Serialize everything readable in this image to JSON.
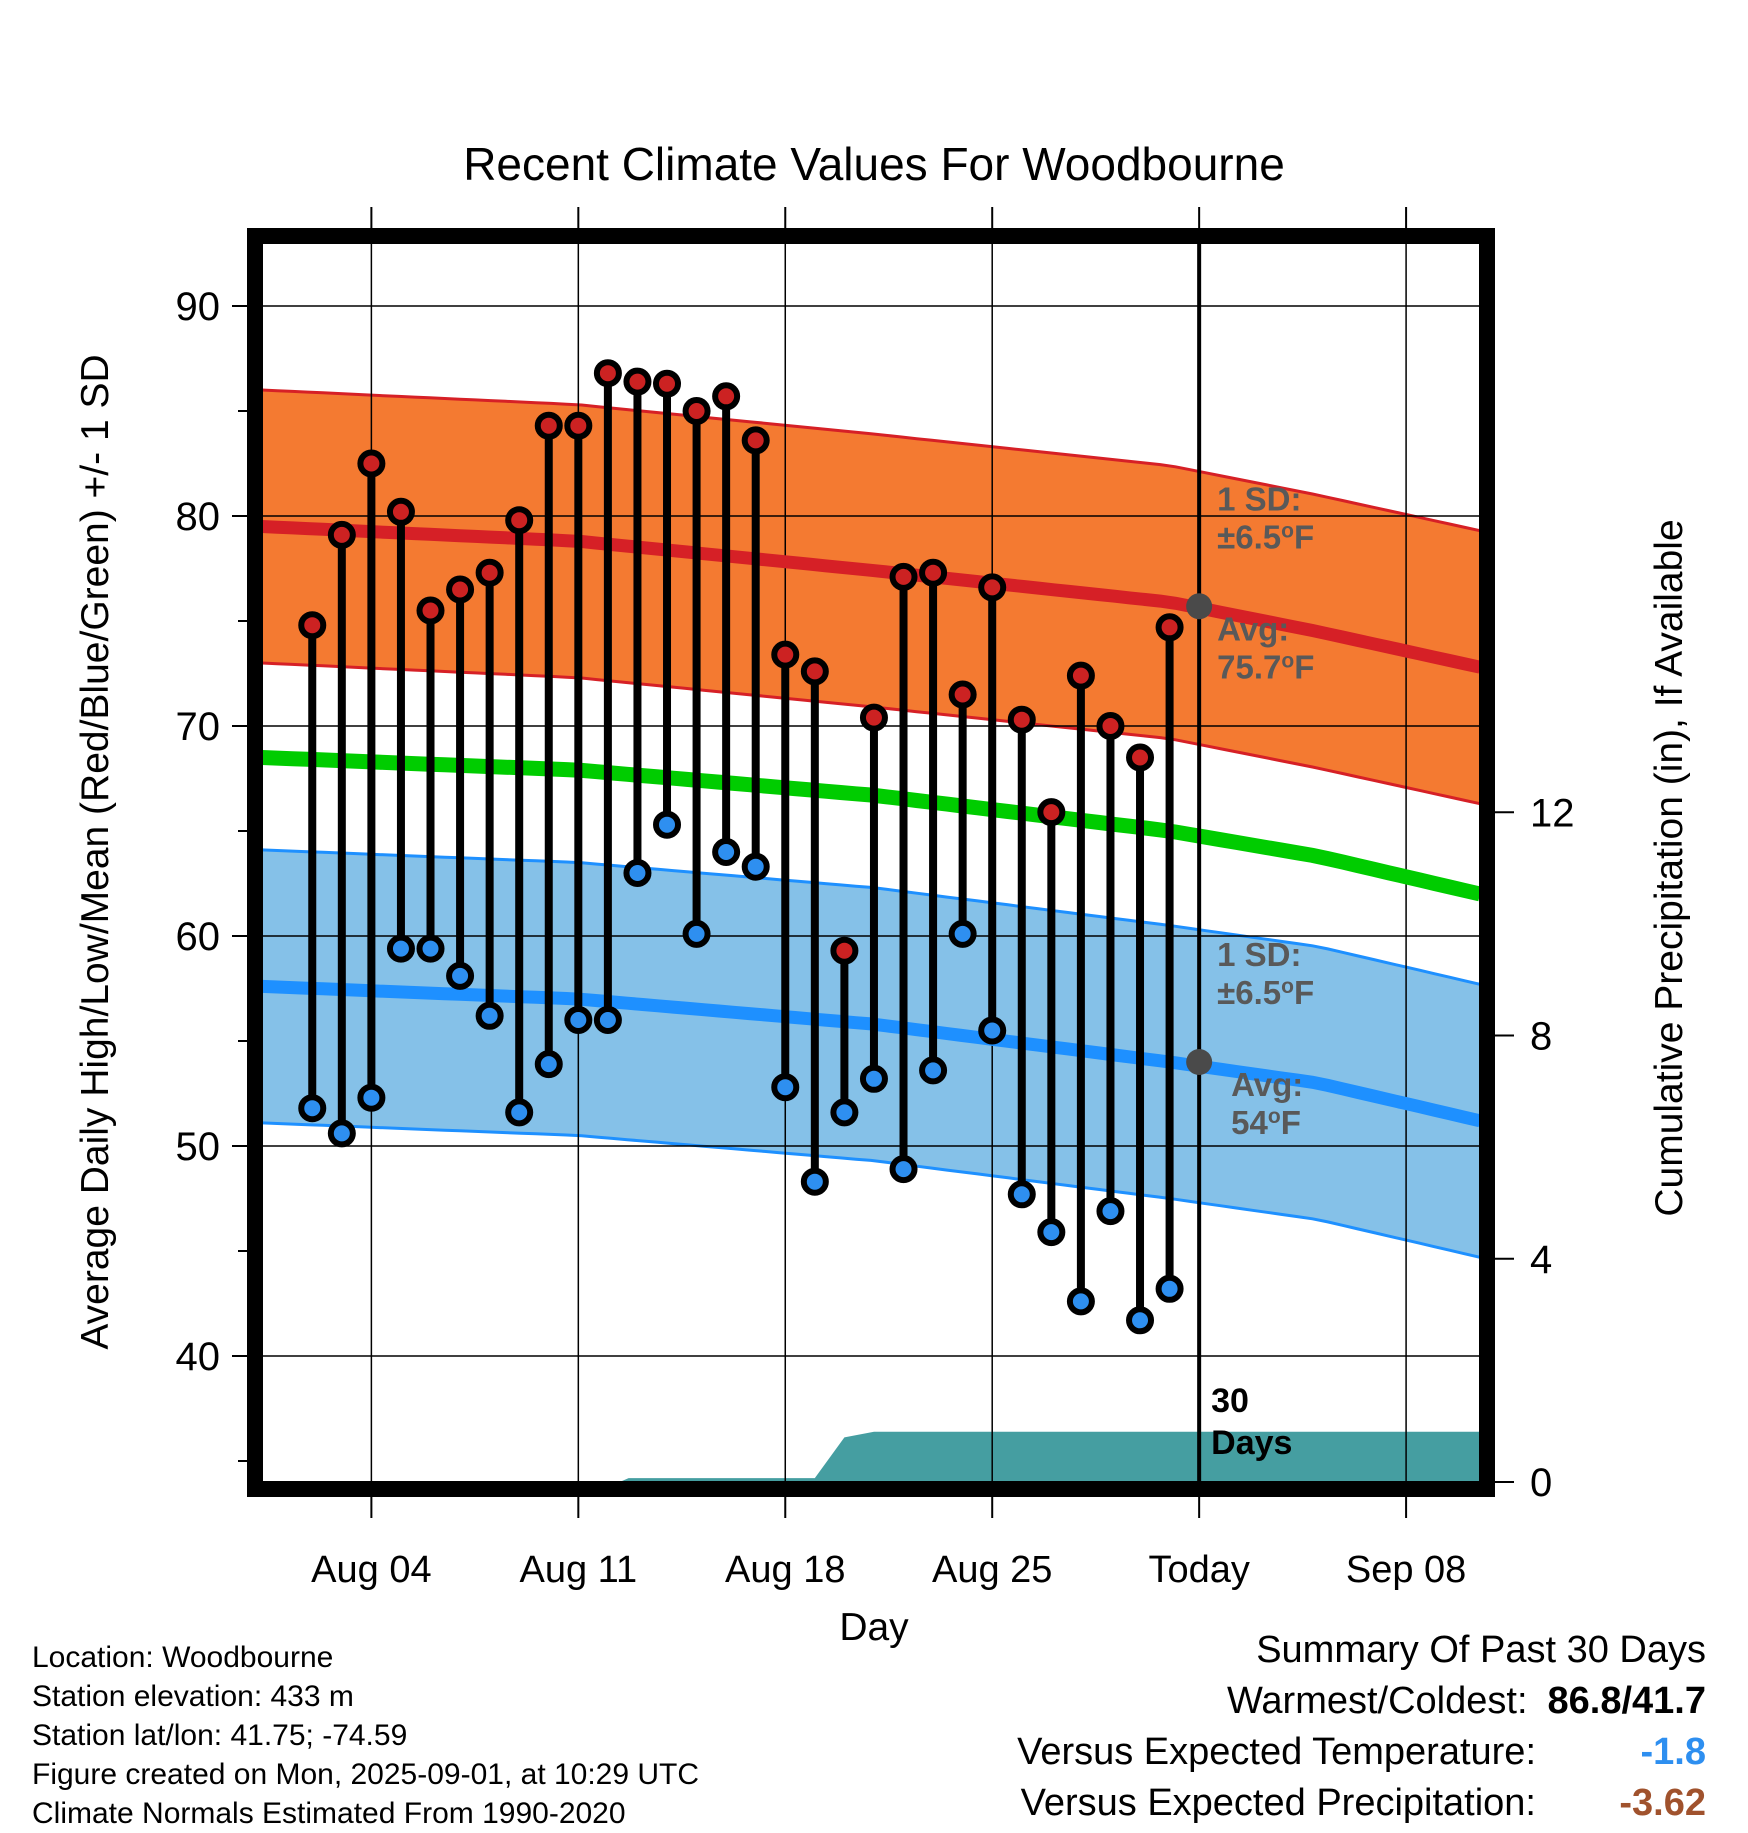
{
  "chart_data": {
    "type": "range-dot",
    "title": "Recent Climate Values For Woodbourne",
    "xlabel": "Day",
    "ylabel": "Average Daily High/Low/Mean (Red/Blue/Green) +/- 1 SD",
    "y2label": "Cumulative Precipitation (in), If Available",
    "ylim": [
      34,
      93
    ],
    "y2lim": [
      0,
      22.2
    ],
    "xlim": [
      -0.7,
      40.5
    ],
    "yticks": [
      "40",
      "50",
      "60",
      "70",
      "80",
      "90"
    ],
    "y2ticks": [
      "0",
      "4",
      "8",
      "12"
    ],
    "xticks": [
      {
        "day": 3,
        "label": "Aug 04"
      },
      {
        "day": 10,
        "label": "Aug 11"
      },
      {
        "day": 17,
        "label": "Aug 18"
      },
      {
        "day": 24,
        "label": "Aug 25"
      },
      {
        "day": 31,
        "label": "Today"
      },
      {
        "day": 38,
        "label": "Sep 08"
      }
    ],
    "days": [
      1,
      2,
      3,
      4,
      5,
      6,
      7,
      8,
      9,
      10,
      11,
      12,
      13,
      14,
      15,
      16,
      17,
      18,
      19,
      20,
      21,
      22,
      23,
      24,
      25,
      26,
      27,
      28,
      29,
      30
    ],
    "highs": [
      74.8,
      79.1,
      82.5,
      80.2,
      75.5,
      76.5,
      77.3,
      79.8,
      84.3,
      84.3,
      86.8,
      86.4,
      86.3,
      85.0,
      85.7,
      83.6,
      73.4,
      72.6,
      59.3,
      70.4,
      77.1,
      77.3,
      71.5,
      76.6,
      70.3,
      65.9,
      72.4,
      70.0,
      68.5,
      74.7
    ],
    "lows": [
      51.8,
      50.6,
      52.3,
      59.4,
      59.4,
      58.1,
      56.2,
      51.6,
      53.9,
      56.0,
      56.0,
      63.0,
      65.3,
      60.1,
      64.0,
      63.3,
      52.8,
      48.3,
      51.6,
      53.2,
      48.9,
      53.6,
      60.1,
      55.5,
      47.7,
      45.9,
      42.6,
      46.9,
      41.7,
      43.2
    ],
    "normal_high": {
      "x": [
        -0.7,
        10,
        20,
        30,
        35,
        40.5
      ],
      "values": [
        79.5,
        78.8,
        77.4,
        75.9,
        74.5,
        72.8
      ]
    },
    "normal_high_sd": 6.5,
    "normal_mean": {
      "x": [
        -0.7,
        10,
        20,
        30,
        35,
        40.5
      ],
      "values": [
        68.5,
        67.9,
        66.7,
        65.0,
        63.8,
        62.0
      ]
    },
    "normal_low": {
      "x": [
        -0.7,
        10,
        20,
        30,
        35,
        40.5
      ],
      "values": [
        57.6,
        57.0,
        55.8,
        54.0,
        53.0,
        51.2
      ]
    },
    "normal_low_sd": 6.5,
    "precip": {
      "x": [
        -0.7,
        11.4,
        11.7,
        18.0,
        19.0,
        20.0,
        40.5
      ],
      "values": [
        0,
        0,
        0.07,
        0.07,
        0.8,
        0.9,
        0.9
      ]
    },
    "today_day": 31,
    "high_label": {
      "sd_line1": "1 SD:",
      "sd_line2": "±6.5",
      "sd_unit": "o",
      "sd_tail": "F",
      "avg_line1": "Avg:",
      "avg_value": "75.7",
      "avg_unit": "o",
      "avg_tail": "F",
      "marker_value": 75.7
    },
    "low_label": {
      "sd_line1": "1 SD:",
      "sd_line2": "±6.5",
      "sd_unit": "o",
      "sd_tail": "F",
      "avg_line1": "Avg:",
      "avg_value": "54",
      "avg_unit": "o",
      "avg_tail": "F",
      "marker_value": 54.0
    },
    "window_label": [
      "30",
      "Days"
    ],
    "colors": {
      "high_band": "#f47a31",
      "high_band_edge": "#d62026",
      "high_line": "#d62026",
      "mean_line": "#00cc00",
      "low_band": "#85c1e8",
      "low_band_edge": "#1e90ff",
      "low_line": "#1e90ff",
      "high_dot": "#cc2222",
      "low_dot": "#2e8ff0",
      "precip_fill": "#459ea1",
      "avg_marker": "#4a4a4a",
      "label_text": "#595959"
    }
  },
  "footer": {
    "location": "Location: Woodbourne",
    "elevation": "Station elevation: 433 m",
    "latlon": "Station lat/lon: 41.75; -74.59",
    "created": "Figure created on Mon, 2025-09-01, at 10:29 UTC",
    "normals": "Climate Normals Estimated From 1990-2020"
  },
  "summary": {
    "title": "Summary Of Past 30 Days",
    "warm_cold_label": "Warmest/Coldest:",
    "warm_cold_value": "86.8/41.7",
    "temp_label": "Versus Expected Temperature:",
    "temp_value": "-1.8",
    "temp_color": "#2e8ff0",
    "precip_label": "Versus Expected Precipitation:",
    "precip_value": "-3.62",
    "precip_color": "#a0522d"
  }
}
